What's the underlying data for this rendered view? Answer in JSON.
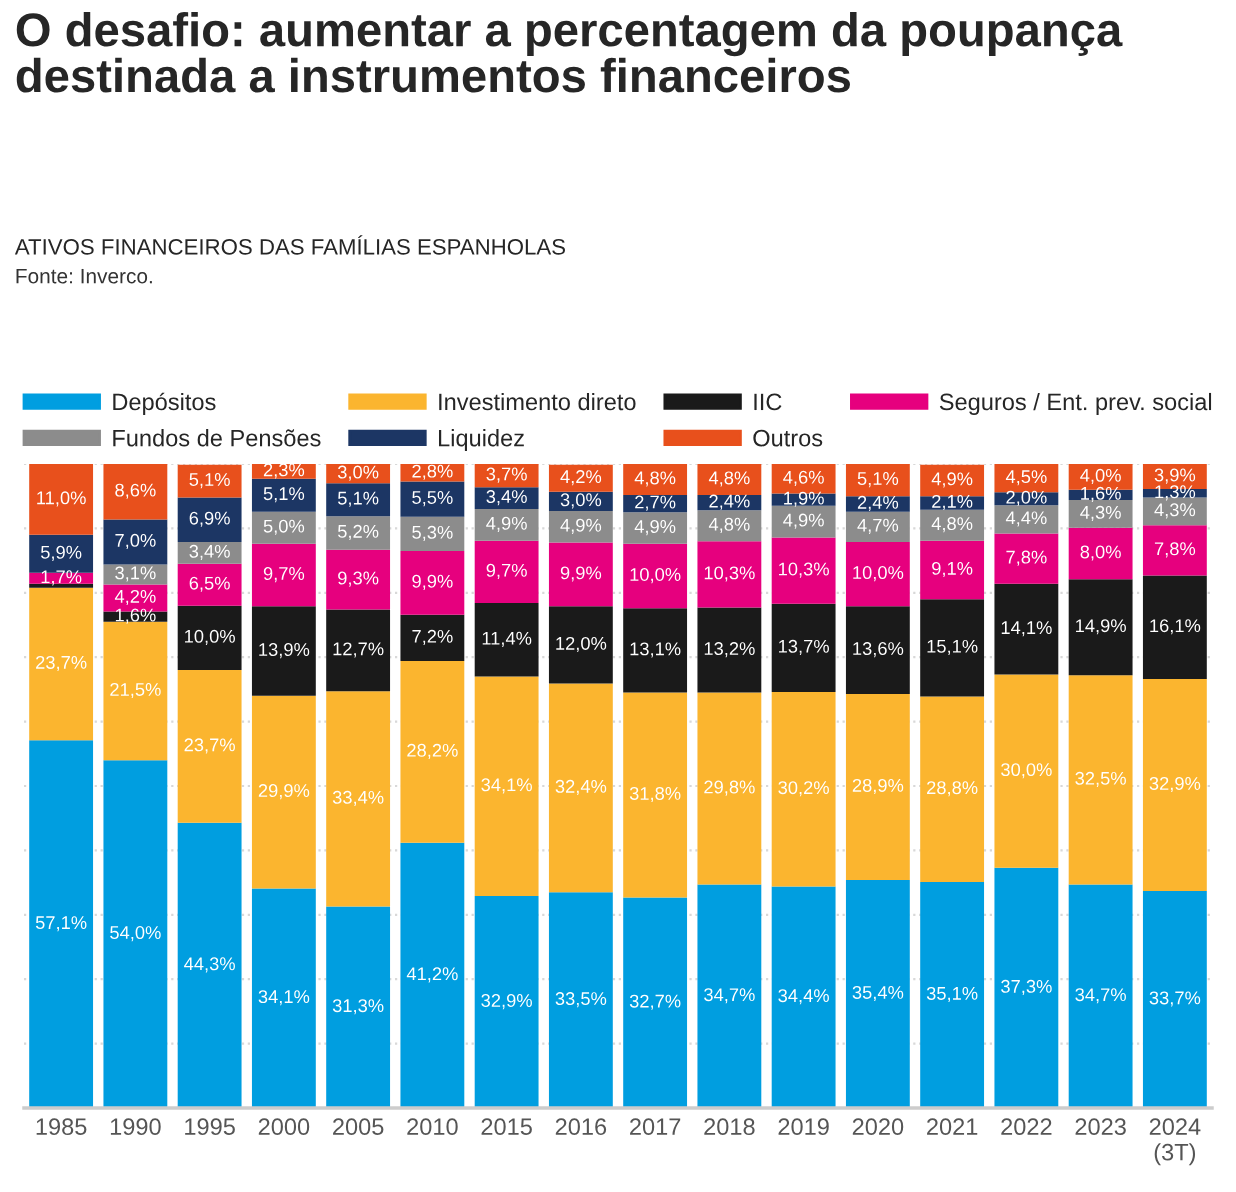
{
  "chart_data": {
    "type": "bar",
    "stacked": true,
    "title": "O desafio: aumentar a percentagem da poupança\ndestinada a instrumentos financeiros",
    "subtitle": "ATIVOS FINANCEIROS DAS FAMÍLIAS ESPANHOLAS",
    "annotations": [
      "Fonte: Inverco."
    ],
    "categories": [
      "1985",
      "1990",
      "1995",
      "2000",
      "2005",
      "2010",
      "2015",
      "2016",
      "2017",
      "2018",
      "2019",
      "2020",
      "2021",
      "2022",
      "2023",
      "2024\n(3T)"
    ],
    "series": [
      {
        "name": "Depósitos",
        "color": "#009ee0",
        "values": [
          57.1,
          54.0,
          44.3,
          34.1,
          31.3,
          41.2,
          32.9,
          33.5,
          32.7,
          34.7,
          34.4,
          35.4,
          35.1,
          37.3,
          34.7,
          33.7
        ],
        "value_labels": [
          "57,1%",
          "54,0%",
          "44,3%",
          "34,1%",
          "31,3%",
          "41,2%",
          "32,9%",
          "33,5%",
          "32,7%",
          "34,7%",
          "34,4%",
          "35,4%",
          "35,1%",
          "37,3%",
          "34,7%",
          "33,7%"
        ]
      },
      {
        "name": "Investimento direto",
        "color": "#fbb52f",
        "values": [
          23.7,
          21.5,
          23.7,
          29.9,
          33.4,
          28.2,
          34.1,
          32.4,
          31.8,
          29.8,
          30.2,
          28.9,
          28.8,
          30.0,
          32.5,
          32.9
        ],
        "value_labels": [
          "23,7%",
          "21,5%",
          "23,7%",
          "29,9%",
          "33,4%",
          "28,2%",
          "34,1%",
          "32,4%",
          "31,8%",
          "29,8%",
          "30,2%",
          "28,9%",
          "28,8%",
          "30,0%",
          "32,5%",
          "32,9%"
        ]
      },
      {
        "name": "IIC",
        "color": "#1a1a1a",
        "values": [
          0.6,
          1.6,
          10.0,
          13.9,
          12.7,
          7.2,
          11.4,
          12.0,
          13.1,
          13.2,
          13.7,
          13.6,
          15.1,
          14.1,
          14.9,
          16.1
        ],
        "value_labels": [
          null,
          "1,6%",
          "10,0%",
          "13,9%",
          "12,7%",
          "7,2%",
          "11,4%",
          "12,0%",
          "13,1%",
          "13,2%",
          "13,7%",
          "13,6%",
          "15,1%",
          "14,1%",
          "14,9%",
          "16,1%"
        ]
      },
      {
        "name": "Seguros / Ent. prev. social",
        "color": "#e6007e",
        "values": [
          1.7,
          4.2,
          6.5,
          9.7,
          9.3,
          9.9,
          9.7,
          9.9,
          10.0,
          10.3,
          10.3,
          10.0,
          9.1,
          7.8,
          8.0,
          7.8
        ],
        "value_labels": [
          "1,7%",
          "4,2%",
          "6,5%",
          "9,7%",
          "9,3%",
          "9,9%",
          "9,7%",
          "9,9%",
          "10,0%",
          "10,3%",
          "10,3%",
          "10,0%",
          "9,1%",
          "7,8%",
          "8,0%",
          "7,8%"
        ]
      },
      {
        "name": "Fundos de Pensões",
        "color": "#8c8c8c",
        "values": [
          null,
          3.1,
          3.4,
          5.0,
          5.2,
          5.3,
          4.9,
          4.9,
          4.9,
          4.8,
          4.9,
          4.7,
          4.8,
          4.4,
          4.3,
          4.3
        ],
        "value_labels": [
          null,
          "3,1%",
          "3,4%",
          "5,0%",
          "5,2%",
          "5,3%",
          "4,9%",
          "4,9%",
          "4,9%",
          "4,8%",
          "4,9%",
          "4,7%",
          "4,8%",
          "4,4%",
          "4,3%",
          "4,3%"
        ]
      },
      {
        "name": "Liquidez",
        "color": "#1c3664",
        "values": [
          5.9,
          7.0,
          6.9,
          5.1,
          5.1,
          5.5,
          3.4,
          3.0,
          2.7,
          2.4,
          1.9,
          2.4,
          2.1,
          2.0,
          1.6,
          1.3
        ],
        "value_labels": [
          "5,9%",
          "7,0%",
          "6,9%",
          "5,1%",
          "5,1%",
          "5,5%",
          "3,4%",
          "3,0%",
          "2,7%",
          "2,4%",
          "1,9%",
          "2,4%",
          "2,1%",
          "2,0%",
          "1,6%",
          "1,3%"
        ]
      },
      {
        "name": "Outros",
        "color": "#e8501c",
        "values": [
          11.0,
          8.6,
          5.1,
          2.3,
          3.0,
          2.8,
          3.7,
          4.2,
          4.8,
          4.8,
          4.6,
          5.1,
          4.9,
          4.5,
          4.0,
          3.9
        ],
        "value_labels": [
          "11,0%",
          "8,6%",
          "5,1%",
          "2,3%",
          "3,0%",
          "2,8%",
          "3,7%",
          "4,2%",
          "4,8%",
          "4,8%",
          "4,6%",
          "5,1%",
          "4,9%",
          "4,5%",
          "4,0%",
          "3,9%"
        ]
      }
    ],
    "ylim": [
      0,
      100
    ],
    "yticks": [
      {
        "value": 0,
        "label": null
      },
      {
        "value": 10,
        "label": null
      },
      {
        "value": 20,
        "label": null
      },
      {
        "value": 30,
        "label": null
      },
      {
        "value": 40,
        "label": null
      },
      {
        "value": 50,
        "label": null
      },
      {
        "value": 60,
        "label": null
      },
      {
        "value": 70,
        "label": null
      },
      {
        "value": 80,
        "label": null
      },
      {
        "value": 90,
        "label": null
      },
      {
        "value": 100,
        "label": null
      }
    ],
    "tick_labels": "x",
    "grid": "y",
    "legend": "top"
  }
}
